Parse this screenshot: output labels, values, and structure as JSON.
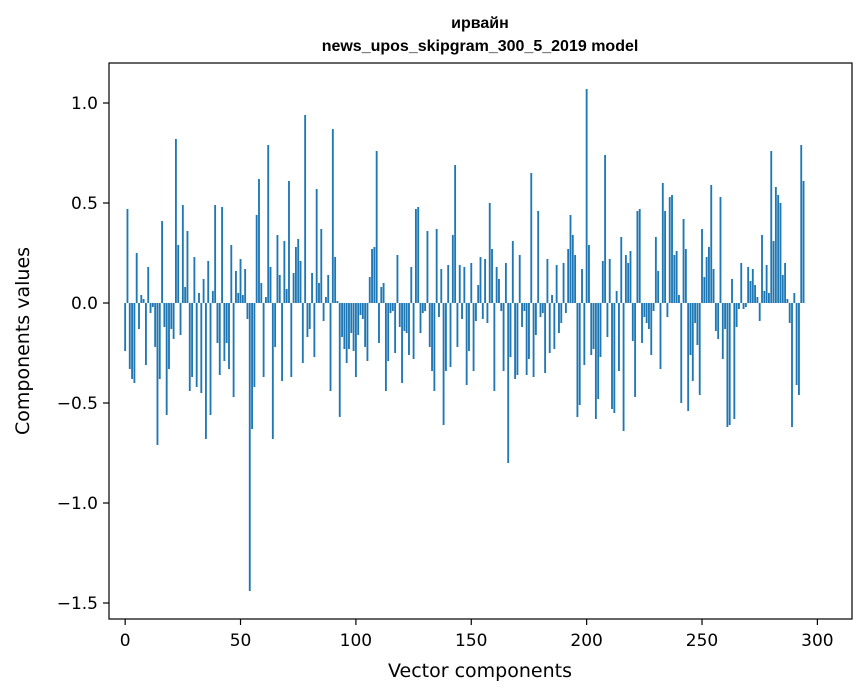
{
  "chart_data": {
    "type": "bar",
    "title_line1": "ирвайн",
    "title_line2": "news_upos_skipgram_300_5_2019 model",
    "xlabel": "Vector components",
    "ylabel": "Components values",
    "xlim": [
      -7,
      315
    ],
    "ylim": [
      -1.58,
      1.2
    ],
    "xticks": [
      0,
      50,
      100,
      150,
      200,
      250,
      300
    ],
    "xtick_labels": [
      "0",
      "50",
      "100",
      "150",
      "200",
      "250",
      "300"
    ],
    "yticks": [
      -1.5,
      -1.0,
      -0.5,
      0.0,
      0.5,
      1.0
    ],
    "ytick_labels": [
      "−1.5",
      "−1.0",
      "−0.5",
      "0.0",
      "0.5",
      "1.0"
    ],
    "bar_color": "#1f77b4",
    "grid": false,
    "series": [
      {
        "values": [
          -0.24,
          0.47,
          -0.33,
          -0.38,
          -0.4,
          0.25,
          -0.13,
          0.04,
          0.02,
          -0.31,
          0.18,
          -0.05,
          -0.02,
          -0.22,
          -0.71,
          -0.38,
          0.41,
          -0.12,
          -0.56,
          -0.33,
          -0.13,
          -0.18,
          0.82,
          0.29,
          -0.16,
          0.49,
          0.08,
          0.36,
          -0.44,
          -0.37,
          0.23,
          -0.42,
          0.05,
          -0.45,
          0.12,
          -0.68,
          0.21,
          -0.56,
          0.06,
          0.49,
          -0.2,
          -0.36,
          0.48,
          -0.29,
          -0.2,
          -0.33,
          0.29,
          -0.47,
          0.16,
          0.05,
          0.22,
          0.04,
          0.17,
          -0.08,
          -1.44,
          -0.63,
          -0.42,
          0.44,
          0.62,
          0.1,
          -0.37,
          0.03,
          0.79,
          0.18,
          -0.68,
          -0.22,
          0.34,
          0.14,
          -0.39,
          0.31,
          0.07,
          0.61,
          -0.37,
          0.15,
          0.28,
          0.32,
          0.21,
          -0.3,
          0.94,
          -0.17,
          -0.13,
          0.15,
          -0.27,
          0.57,
          0.1,
          0.37,
          -0.09,
          0.03,
          0.14,
          -0.44,
          0.87,
          0.23,
          0.01,
          -0.57,
          -0.17,
          -0.23,
          -0.3,
          -0.23,
          -0.15,
          -0.24,
          -0.37,
          -0.16,
          -0.06,
          -0.08,
          -0.22,
          -0.29,
          0.13,
          0.27,
          0.28,
          0.76,
          -0.2,
          0.08,
          0.1,
          -0.44,
          -0.29,
          -0.05,
          -0.04,
          -0.25,
          0.24,
          -0.12,
          -0.4,
          -0.14,
          -0.15,
          -0.26,
          0.18,
          -0.28,
          0.47,
          0.48,
          -0.15,
          -0.05,
          -0.04,
          0.36,
          -0.22,
          -0.34,
          -0.44,
          0.37,
          -0.07,
          0.17,
          -0.61,
          -0.34,
          0.19,
          -0.32,
          0.34,
          0.69,
          -0.22,
          0.19,
          -0.08,
          0.18,
          -0.41,
          -0.24,
          0.2,
          -0.34,
          -0.09,
          0.09,
          0.23,
          -0.08,
          0.22,
          -0.1,
          0.5,
          0.27,
          -0.44,
          0.18,
          0.12,
          -0.04,
          -0.34,
          0.2,
          -0.8,
          -0.27,
          0.31,
          -0.38,
          -0.36,
          0.24,
          -0.12,
          -0.04,
          -0.36,
          -0.28,
          0.65,
          -0.37,
          -0.16,
          0.46,
          -0.07,
          -0.05,
          -0.35,
          0.22,
          -0.25,
          0.04,
          -0.23,
          0.19,
          -0.15,
          -0.1,
          0.2,
          -0.05,
          0.27,
          0.44,
          0.34,
          0.24,
          -0.57,
          -0.51,
          0.17,
          -0.31,
          1.07,
          0.29,
          -0.26,
          -0.23,
          -0.58,
          -0.48,
          -0.27,
          0.21,
          0.74,
          -0.17,
          0.22,
          -0.53,
          -0.55,
          0.06,
          -0.34,
          0.33,
          -0.64,
          0.24,
          0.2,
          0.26,
          -0.19,
          -0.47,
          0.46,
          0.47,
          -0.2,
          -0.07,
          -0.1,
          -0.13,
          -0.26,
          -0.04,
          0.33,
          0.16,
          -0.33,
          0.6,
          0.46,
          -0.07,
          0.53,
          0.54,
          0.24,
          0.26,
          0.04,
          -0.5,
          0.42,
          0.27,
          -0.54,
          -0.26,
          -0.39,
          -0.1,
          -0.21,
          -0.46,
          0.37,
          0.13,
          0.23,
          0.28,
          0.59,
          0.17,
          -0.14,
          -0.18,
          0.53,
          -0.28,
          -0.13,
          -0.62,
          -0.61,
          0.12,
          -0.58,
          -0.12,
          -0.03,
          0.2,
          -0.03,
          -0.02,
          0.18,
          0.11,
          0.17,
          0.09,
          0.03,
          -0.09,
          0.34,
          0.06,
          0.19,
          0.05,
          0.76,
          0.31,
          0.58,
          0.54,
          0.5,
          0.14,
          0.2,
          0.02,
          -0.1,
          -0.62,
          0.05,
          -0.41,
          -0.46,
          0.79,
          0.61
        ]
      }
    ]
  }
}
